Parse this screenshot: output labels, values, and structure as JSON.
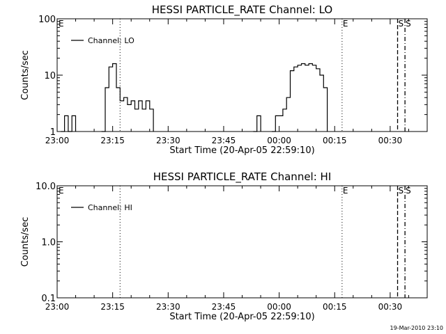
{
  "footer_timestamp": "19-Mar-2010 23:10",
  "chart_data": [
    {
      "type": "line",
      "title": "HESSI PARTICLE_RATE Channel: LO",
      "xlabel": "Start Time (20-Apr-05 22:59:10)",
      "ylabel": "Counts/sec",
      "y_scale": "log",
      "ylim": [
        1,
        100
      ],
      "xlim": [
        "23:00",
        "00:40"
      ],
      "x_tick_labels": [
        "23:00",
        "23:15",
        "23:30",
        "23:45",
        "00:00",
        "00:15",
        "00:30"
      ],
      "y_tick_labels": [
        "1",
        "10",
        "100"
      ],
      "grid": false,
      "legend": {
        "placement": "top-left",
        "entries": [
          "Channel: LO"
        ]
      },
      "markers": [
        {
          "label": "E",
          "time": "23:00",
          "style": "none"
        },
        {
          "label": "",
          "time": "23:17",
          "style": "dotted"
        },
        {
          "label": "E",
          "time": "00:17",
          "style": "dotted"
        },
        {
          "label": "S",
          "time": "00:32",
          "style": "dashed"
        },
        {
          "label": "S",
          "time": "00:34",
          "style": "dash-dot"
        }
      ],
      "series": [
        {
          "name": "Channel: LO",
          "points": [
            [
              "23:01",
              1
            ],
            [
              "23:02",
              1.9
            ],
            [
              "23:03",
              1
            ],
            [
              "23:04",
              1.9
            ],
            [
              "23:05",
              1
            ],
            [
              "23:12",
              1
            ],
            [
              "23:13",
              6
            ],
            [
              "23:14",
              14
            ],
            [
              "23:15",
              16
            ],
            [
              "23:16",
              6
            ],
            [
              "23:17",
              3.5
            ],
            [
              "23:18",
              4
            ],
            [
              "23:19",
              3
            ],
            [
              "23:20",
              3.5
            ],
            [
              "23:21",
              2.5
            ],
            [
              "23:22",
              3.5
            ],
            [
              "23:23",
              2.5
            ],
            [
              "23:24",
              3.5
            ],
            [
              "23:25",
              2.5
            ],
            [
              "23:26",
              1
            ],
            [
              "23:53",
              1
            ],
            [
              "23:54",
              1.9
            ],
            [
              "23:55",
              1
            ],
            [
              "23:58",
              1
            ],
            [
              "23:59",
              1.9
            ],
            [
              "00:00",
              1.9
            ],
            [
              "00:01",
              2.5
            ],
            [
              "00:02",
              4
            ],
            [
              "00:03",
              12
            ],
            [
              "00:04",
              14
            ],
            [
              "00:05",
              15
            ],
            [
              "00:06",
              16
            ],
            [
              "00:07",
              15
            ],
            [
              "00:08",
              16
            ],
            [
              "00:09",
              15
            ],
            [
              "00:10",
              13
            ],
            [
              "00:11",
              10
            ],
            [
              "00:12",
              6
            ],
            [
              "00:13",
              1
            ]
          ]
        }
      ]
    },
    {
      "type": "line",
      "title": "HESSI PARTICLE_RATE Channel: HI",
      "xlabel": "Start Time (20-Apr-05 22:59:10)",
      "ylabel": "Counts/sec",
      "y_scale": "log",
      "ylim": [
        0.1,
        10
      ],
      "xlim": [
        "23:00",
        "00:40"
      ],
      "x_tick_labels": [
        "23:00",
        "23:15",
        "23:30",
        "23:45",
        "00:00",
        "00:15",
        "00:30"
      ],
      "y_tick_labels": [
        "0.1",
        "1.0",
        "10.0"
      ],
      "grid": false,
      "legend": {
        "placement": "top-left",
        "entries": [
          "Channel: HI"
        ]
      },
      "markers": [
        {
          "label": "E",
          "time": "23:00",
          "style": "none"
        },
        {
          "label": "",
          "time": "23:17",
          "style": "dotted"
        },
        {
          "label": "E",
          "time": "00:17",
          "style": "dotted"
        },
        {
          "label": "S",
          "time": "00:32",
          "style": "dashed"
        },
        {
          "label": "S",
          "time": "00:34",
          "style": "dash-dot"
        }
      ],
      "series": [
        {
          "name": "Channel: HI",
          "points": []
        }
      ]
    }
  ]
}
